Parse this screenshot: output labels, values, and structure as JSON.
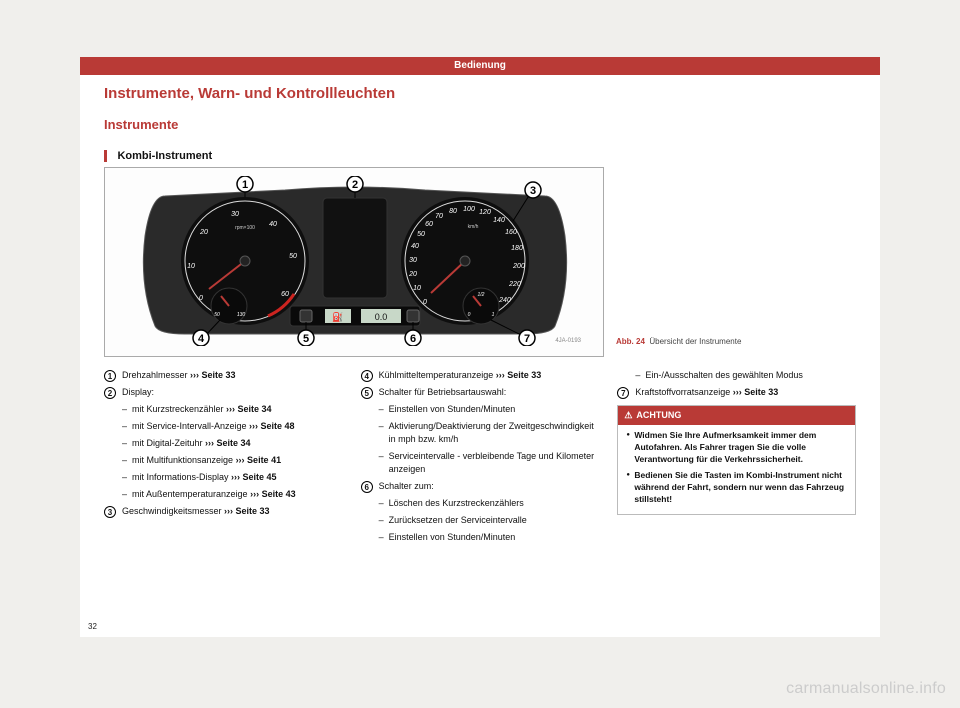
{
  "header": "Bedienung",
  "h1": "Instrumente, Warn- und Kontrollleuchten",
  "h2": "Instrumente",
  "h3": "Kombi-Instrument",
  "figure": {
    "caption_label": "Abb. 24",
    "caption_text": "Übersicht der Instrumente",
    "image_id": "4JA-0193",
    "callouts": [
      "1",
      "2",
      "3",
      "4",
      "5",
      "6",
      "7"
    ],
    "tachometer": {
      "unit": "rpm×100",
      "labels": [
        "0",
        "10",
        "20",
        "30",
        "40",
        "50",
        "60"
      ]
    },
    "speedometer": {
      "unit": "km/h",
      "labels": [
        "0",
        "10",
        "20",
        "30",
        "40",
        "50",
        "60",
        "70",
        "80",
        "100",
        "120",
        "140",
        "160",
        "180",
        "200",
        "220",
        "240"
      ]
    },
    "temp_gauge": {
      "cold": "50",
      "hot": "130"
    },
    "fuel_gauge": {
      "empty": "0",
      "half": "1/2",
      "full": "1"
    },
    "lcd_left": "⛽",
    "lcd_right": "0.0",
    "colors": {
      "accent": "#b93a36",
      "cluster_body": "#2a2a2a",
      "dial_face": "#0e0e0e",
      "needle": "#b93a36"
    }
  },
  "col1": [
    {
      "num": "1",
      "text": "Drehzahlmesser ",
      "ref": "››› Seite 33"
    },
    {
      "num": "2",
      "text": "Display:"
    },
    {
      "sub": true,
      "text": "mit Kurzstreckenzähler ",
      "ref": "››› Seite 34"
    },
    {
      "sub": true,
      "text": "mit Service-Intervall-Anzeige ",
      "ref": "››› Seite 48"
    },
    {
      "sub": true,
      "text": "mit Digital-Zeituhr ",
      "ref": "››› Seite 34"
    },
    {
      "sub": true,
      "text": "mit Multifunktionsanzeige ",
      "ref": "››› Seite 41"
    },
    {
      "sub": true,
      "text": "mit Informations-Display ",
      "ref": "››› Seite 45"
    },
    {
      "sub": true,
      "text": "mit Außentemperaturanzeige ",
      "ref": "››› Seite 43"
    },
    {
      "num": "3",
      "text": "Geschwindigkeitsmesser ",
      "ref": "››› Seite 33"
    }
  ],
  "col2": [
    {
      "num": "4",
      "text": "Kühlmitteltemperaturanzeige ",
      "ref": "››› Seite 33"
    },
    {
      "num": "5",
      "text": "Schalter für Betriebsartauswahl:"
    },
    {
      "sub": true,
      "text": "Einstellen von Stunden/Minuten"
    },
    {
      "sub": true,
      "text": "Aktivierung/Deaktivierung der Zweitgeschwindigkeit in mph bzw. km/h"
    },
    {
      "sub": true,
      "text": "Serviceintervalle - verbleibende Tage und Kilometer anzeigen"
    },
    {
      "num": "6",
      "text": "Schalter zum:"
    },
    {
      "sub": true,
      "text": "Löschen des Kurzstreckenzählers"
    },
    {
      "sub": true,
      "text": "Zurücksetzen der Serviceintervalle"
    },
    {
      "sub": true,
      "text": "Einstellen von Stunden/Minuten"
    }
  ],
  "col3_items": [
    {
      "sub": true,
      "text": "Ein-/Ausschalten des gewählten Modus"
    },
    {
      "num": "7",
      "text": "Kraftstoffvorratsanzeige ",
      "ref": "››› Seite 33"
    }
  ],
  "achtung": {
    "title": "ACHTUNG",
    "paras": [
      "Widmen Sie Ihre Aufmerksamkeit immer dem Autofahren. Als Fahrer tragen Sie die volle Verantwortung für die Verkehrssicherheit.",
      "Bedienen Sie die Tasten im Kombi-Instrument nicht während der Fahrt, sondern nur wenn das Fahrzeug stillsteht!"
    ]
  },
  "page_num": "32",
  "watermark": "carmanualsonline.info"
}
